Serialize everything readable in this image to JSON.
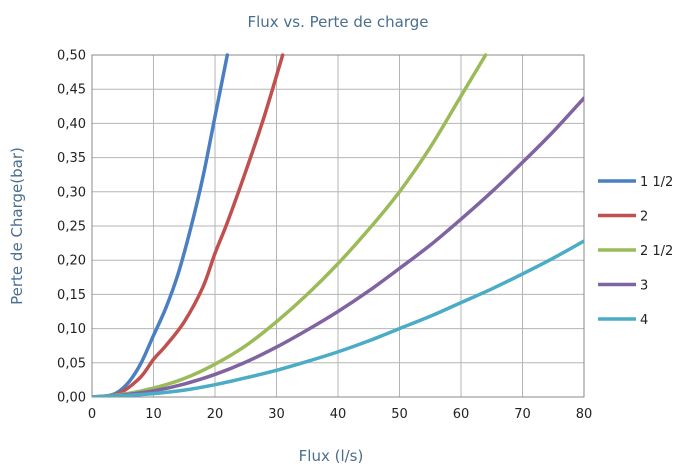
{
  "chart_data": {
    "type": "line",
    "title": "Flux vs. Perte de charge",
    "xlabel": "Flux (l/s)",
    "ylabel": "Perte de Charge(bar)",
    "xlim": [
      0,
      80
    ],
    "ylim": [
      0,
      0.5
    ],
    "x_ticks": [
      "0",
      "10",
      "20",
      "30",
      "40",
      "50",
      "60",
      "70",
      "80"
    ],
    "y_ticks": [
      "0,00",
      "0,05",
      "0,10",
      "0,15",
      "0,20",
      "0,25",
      "0,30",
      "0,35",
      "0,40",
      "0,45",
      "0,50"
    ],
    "grid": true,
    "legend_position": "right",
    "series": [
      {
        "name": "1 1/2",
        "color": "#4a7fc1",
        "x": [
          0,
          2,
          4,
          6,
          8,
          10,
          12,
          14,
          16,
          18,
          20,
          22
        ],
        "y": [
          0,
          0.001,
          0.006,
          0.022,
          0.05,
          0.09,
          0.13,
          0.18,
          0.245,
          0.32,
          0.41,
          0.5
        ]
      },
      {
        "name": "2",
        "color": "#c0504d",
        "x": [
          0,
          3,
          5,
          8,
          10,
          12,
          15,
          18,
          20,
          22,
          25,
          28,
          31
        ],
        "y": [
          0,
          0.002,
          0.008,
          0.03,
          0.055,
          0.075,
          0.11,
          0.16,
          0.21,
          0.255,
          0.33,
          0.41,
          0.5
        ]
      },
      {
        "name": "2 1/2",
        "color": "#9bbb59",
        "x": [
          0,
          5,
          10,
          15,
          20,
          25,
          30,
          35,
          40,
          45,
          50,
          55,
          60,
          64
        ],
        "y": [
          0,
          0.004,
          0.013,
          0.027,
          0.048,
          0.075,
          0.11,
          0.15,
          0.195,
          0.245,
          0.3,
          0.365,
          0.44,
          0.5
        ]
      },
      {
        "name": "3",
        "color": "#8064a2",
        "x": [
          0,
          5,
          10,
          15,
          20,
          25,
          30,
          35,
          40,
          45,
          50,
          55,
          60,
          65,
          70,
          75,
          80
        ],
        "y": [
          0,
          0.003,
          0.009,
          0.019,
          0.033,
          0.051,
          0.073,
          0.098,
          0.125,
          0.155,
          0.188,
          0.222,
          0.26,
          0.3,
          0.343,
          0.388,
          0.437
        ]
      },
      {
        "name": "4",
        "color": "#4bacc6",
        "x": [
          0,
          5,
          10,
          15,
          20,
          25,
          30,
          35,
          40,
          45,
          50,
          55,
          60,
          65,
          70,
          75,
          80
        ],
        "y": [
          0,
          0.002,
          0.005,
          0.01,
          0.018,
          0.028,
          0.039,
          0.052,
          0.066,
          0.082,
          0.1,
          0.118,
          0.138,
          0.158,
          0.18,
          0.203,
          0.228
        ]
      }
    ]
  }
}
